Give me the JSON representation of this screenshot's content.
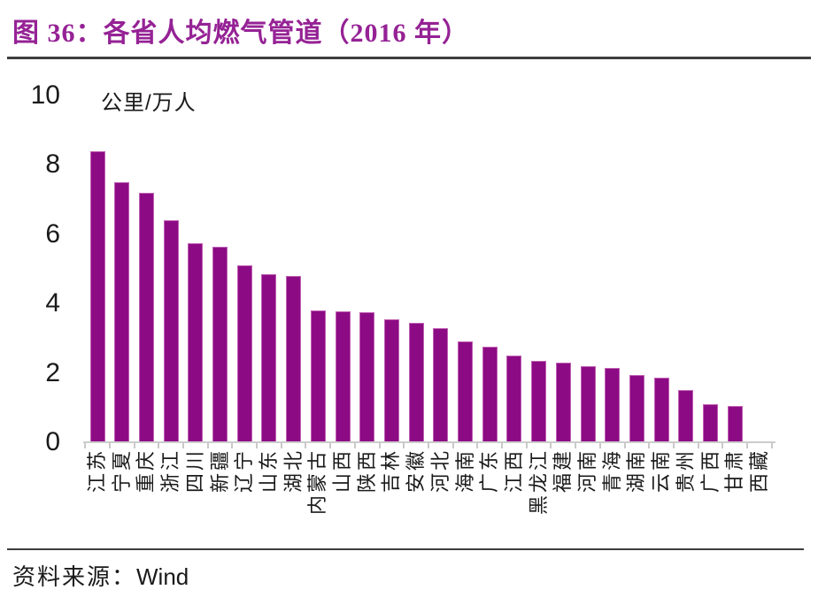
{
  "header": {
    "title": "图 36：各省人均燃气管道（2016 年）",
    "title_color": "#952295"
  },
  "source": {
    "label": "资料来源：",
    "value": "Wind"
  },
  "chart_data": {
    "type": "bar",
    "title": "各省人均燃气管道（2016 年）",
    "figure_label": "图 36",
    "year": "2016",
    "unit": "公里/万人",
    "xlabel": "",
    "ylabel": "公里/万人",
    "ylim": [
      0,
      10
    ],
    "yticks": [
      0,
      2,
      4,
      6,
      8,
      10
    ],
    "grid": false,
    "legend": "none",
    "bar_color": "#8C0B84",
    "axis_color": "#cccccc",
    "categories": [
      "江苏",
      "宁夏",
      "重庆",
      "浙江",
      "四川",
      "新疆",
      "辽宁",
      "山东",
      "湖北",
      "内蒙古",
      "山西",
      "陕西",
      "吉林",
      "安徽",
      "河北",
      "海南",
      "广东",
      "江西",
      "黑龙江",
      "福建",
      "河南",
      "青海",
      "湖南",
      "云南",
      "贵州",
      "广西",
      "甘肃",
      "西藏"
    ],
    "values": [
      8.4,
      7.5,
      7.2,
      6.4,
      5.75,
      5.65,
      5.1,
      4.85,
      4.8,
      3.8,
      3.78,
      3.75,
      3.55,
      3.45,
      3.3,
      2.9,
      2.75,
      2.5,
      2.35,
      2.3,
      2.2,
      2.15,
      1.95,
      1.85,
      1.5,
      1.1,
      1.05,
      0
    ],
    "source": "Wind"
  }
}
